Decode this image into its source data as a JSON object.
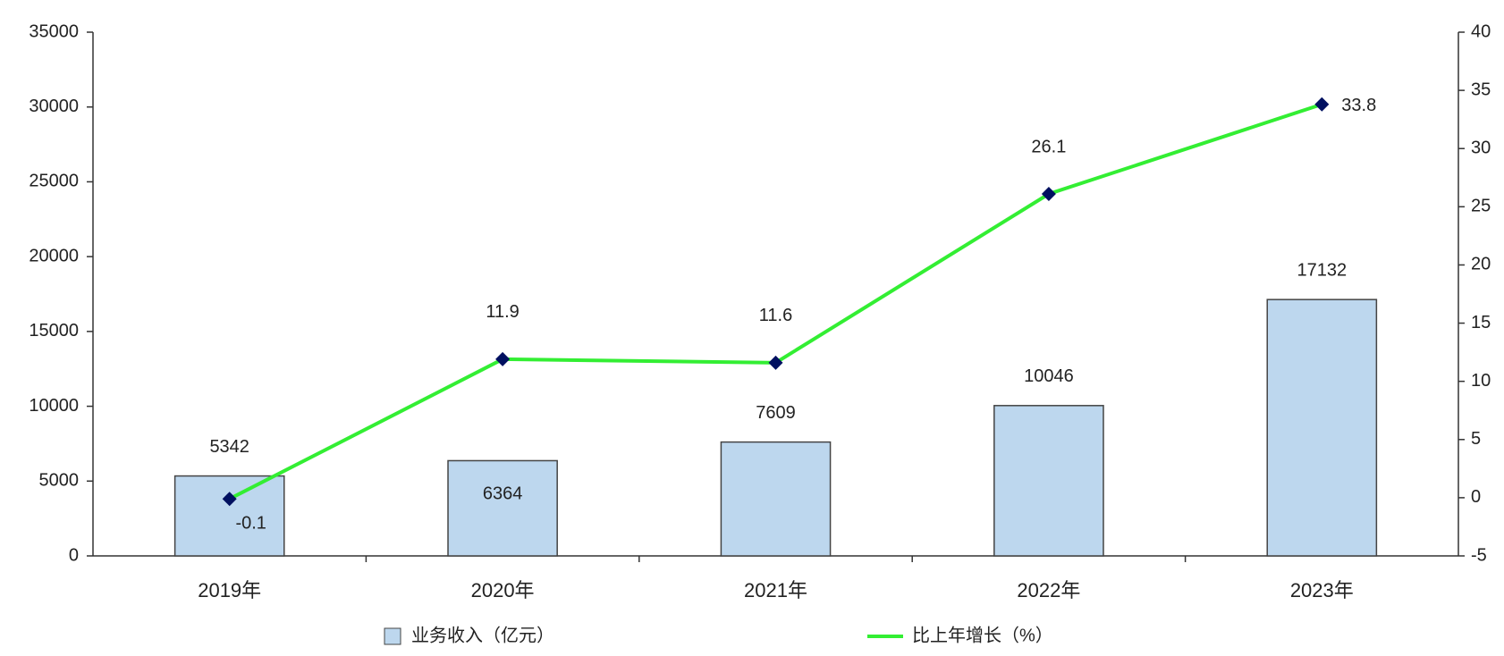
{
  "chart_data": {
    "type": "bar-line",
    "categories": [
      "2019年",
      "2020年",
      "2021年",
      "2022年",
      "2023年"
    ],
    "series": [
      {
        "name": "业务收入（亿元）",
        "type": "bar",
        "color": "#bdd7ee",
        "values": [
          5342,
          6364,
          7609,
          10046,
          17132
        ]
      },
      {
        "name": "比上年增长（%）",
        "type": "line",
        "axis": "y2",
        "color": "#33ee33",
        "values": [
          -0.1,
          11.9,
          11.6,
          26.1,
          33.8
        ]
      }
    ],
    "ylim": [
      0,
      35000
    ],
    "yticks": [
      0,
      5000,
      10000,
      15000,
      20000,
      25000,
      30000,
      35000
    ],
    "y2lim": [
      -5,
      40
    ],
    "y2ticks": [
      -5,
      0,
      5,
      10,
      15,
      20,
      25,
      30,
      35,
      40
    ],
    "legend": "bottom"
  }
}
